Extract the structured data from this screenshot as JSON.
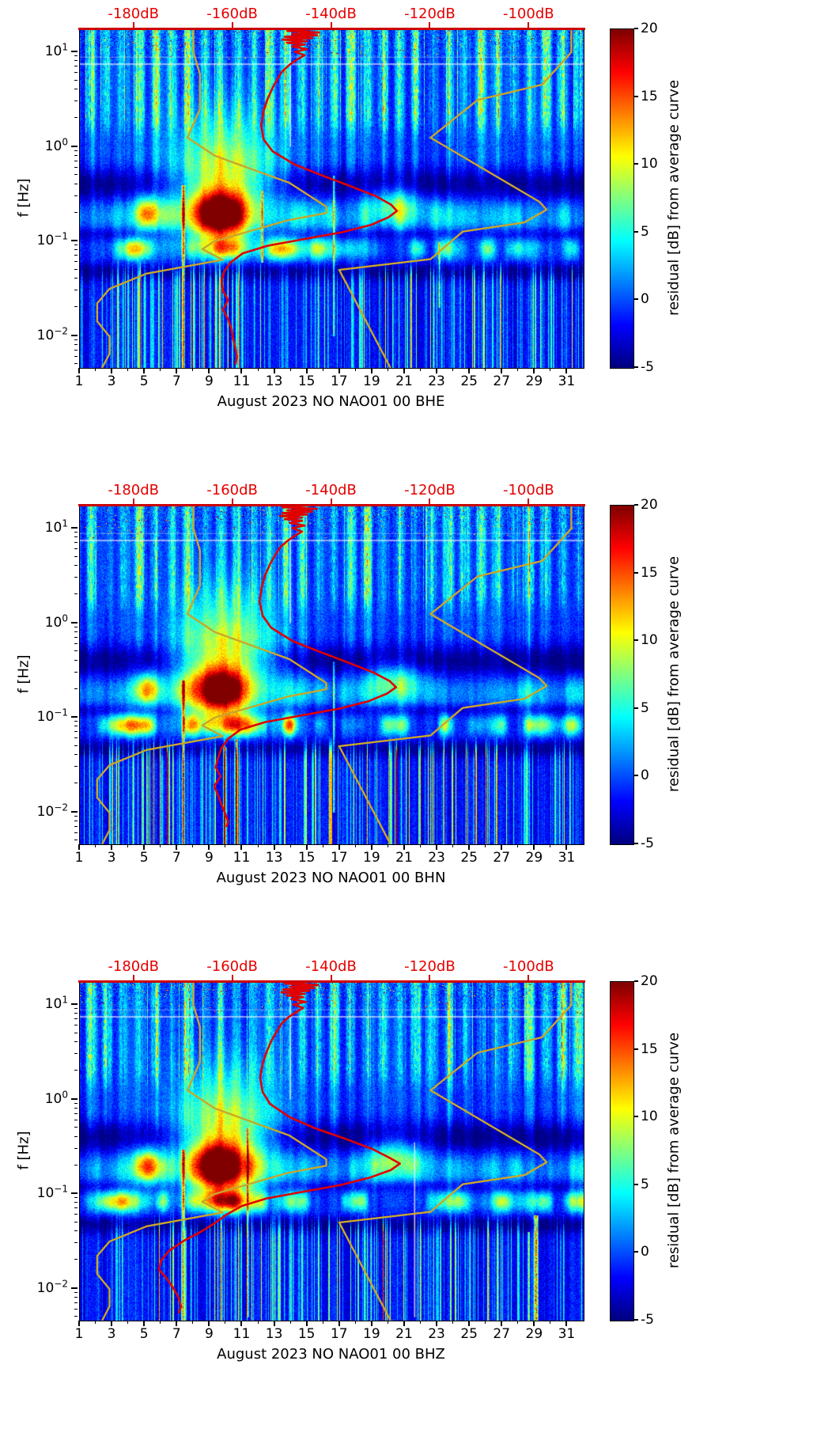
{
  "colors": {
    "top_axis_labels": "#e60000",
    "top_axis_spine": "#cc0000",
    "median_curve": "#e00000",
    "noise_model_curves": "#c9a62b",
    "spine": "#000000",
    "background": "#ffffff"
  },
  "chart_data": {
    "type": "heatmap",
    "colormap": "jet",
    "clim": [
      -5,
      20
    ],
    "ylabel": "f [Hz]",
    "x_axis": {
      "tick_days": [
        1,
        3,
        5,
        7,
        9,
        11,
        13,
        15,
        17,
        19,
        21,
        23,
        25,
        27,
        29,
        31
      ],
      "range": [
        1,
        32
      ]
    },
    "y_axis": {
      "base": "10",
      "decades": [
        {
          "f": 10,
          "exp": "1"
        },
        {
          "f": 1,
          "exp": "0"
        },
        {
          "f": 0.1,
          "exp": "−1"
        },
        {
          "f": 0.01,
          "exp": "−2"
        }
      ],
      "f_range": [
        0.0046,
        17.5
      ]
    },
    "top_axis": {
      "ticks": [
        {
          "db": -180,
          "label": "-180dB"
        },
        {
          "db": -160,
          "label": "-160dB"
        },
        {
          "db": -140,
          "label": "-140dB"
        },
        {
          "db": -120,
          "label": "-120dB"
        },
        {
          "db": -100,
          "label": "-100dB"
        }
      ],
      "db_range": [
        -191,
        -89
      ]
    },
    "colorbar": {
      "label": "residual [dB] from average curve",
      "ticks": [
        20,
        15,
        10,
        5,
        0,
        -5
      ],
      "vmin": -5,
      "vmax": 20
    },
    "curves": {
      "nlnm": [
        [
          17.5,
          -168
        ],
        [
          10,
          -168
        ],
        [
          5.88,
          -166.7
        ],
        [
          2.5,
          -166.7
        ],
        [
          1.25,
          -169.2
        ],
        [
          0.806,
          -163.7
        ],
        [
          0.417,
          -148.6
        ],
        [
          0.233,
          -141.1
        ],
        [
          0.2,
          -141.1
        ],
        [
          0.167,
          -149.0
        ],
        [
          0.1,
          -163.8
        ],
        [
          0.083,
          -166.2
        ],
        [
          0.064,
          -162.1
        ],
        [
          0.0457,
          -177.5
        ],
        [
          0.0316,
          -185.0
        ],
        [
          0.0222,
          -187.5
        ],
        [
          0.0143,
          -187.5
        ],
        [
          0.0099,
          -185.0
        ],
        [
          0.0065,
          -185.0
        ],
        [
          0.0046,
          -186.5
        ]
      ],
      "nhnm": [
        [
          17.5,
          -91.5
        ],
        [
          10,
          -91.5
        ],
        [
          4.55,
          -97.4
        ],
        [
          3.12,
          -110.5
        ],
        [
          1.25,
          -120.0
        ],
        [
          0.263,
          -98.0
        ],
        [
          0.217,
          -96.5
        ],
        [
          0.159,
          -101.0
        ],
        [
          0.127,
          -113.5
        ],
        [
          0.065,
          -120.0
        ],
        [
          0.05,
          -138.5
        ],
        [
          0.0046,
          -128.1
        ]
      ]
    },
    "panels": [
      {
        "channel": "BHE",
        "xlabel": "August 2023 NO NAO01 00 BHE",
        "seed": 3,
        "storm": {
          "day": 9.6,
          "amp": 21
        },
        "special_columns": [
          {
            "day": 7.35,
            "f1": 0.0046,
            "f2": 0.4,
            "amp": 15,
            "w": 2
          },
          {
            "day": 12.2,
            "f1": 0.06,
            "f2": 0.35,
            "amp": 11,
            "w": 1
          },
          {
            "day": 16.6,
            "f1": 0.01,
            "f2": 0.5,
            "amp": 10,
            "w": 1
          },
          {
            "day": 23.1,
            "f1": 0.02,
            "f2": 0.1,
            "amp": 9,
            "w": 1
          }
        ],
        "gap_columns": [
          {
            "day": 13.95,
            "f1": 1.0,
            "f2": 17.5
          }
        ],
        "median_curve": [
          [
            17.5,
            -144
          ],
          [
            16.8,
            -149
          ],
          [
            16.2,
            -142.5
          ],
          [
            15.6,
            -148
          ],
          [
            15.1,
            -143
          ],
          [
            14.6,
            -149.5
          ],
          [
            14.1,
            -144
          ],
          [
            13.6,
            -150
          ],
          [
            13.1,
            -145
          ],
          [
            12.6,
            -149
          ],
          [
            12.1,
            -145.5
          ],
          [
            11.5,
            -148
          ],
          [
            10.8,
            -145
          ],
          [
            10.1,
            -147.5
          ],
          [
            9.3,
            -145.5
          ],
          [
            8.4,
            -147
          ],
          [
            7.4,
            -148.5
          ],
          [
            6.3,
            -150
          ],
          [
            5.2,
            -151
          ],
          [
            4.2,
            -152
          ],
          [
            3.2,
            -153
          ],
          [
            2.4,
            -153.8
          ],
          [
            1.7,
            -154.3
          ],
          [
            1.2,
            -153.8
          ],
          [
            0.9,
            -152
          ],
          [
            0.65,
            -147.5
          ],
          [
            0.5,
            -142
          ],
          [
            0.38,
            -136
          ],
          [
            0.3,
            -131
          ],
          [
            0.245,
            -128
          ],
          [
            0.21,
            -126.8
          ],
          [
            0.18,
            -128.5
          ],
          [
            0.15,
            -132
          ],
          [
            0.125,
            -138
          ],
          [
            0.105,
            -146
          ],
          [
            0.09,
            -153
          ],
          [
            0.075,
            -158
          ],
          [
            0.06,
            -160.5
          ],
          [
            0.048,
            -161.8
          ],
          [
            0.038,
            -162.3
          ],
          [
            0.03,
            -162
          ],
          [
            0.024,
            -161
          ],
          [
            0.019,
            -162
          ],
          [
            0.015,
            -161
          ],
          [
            0.012,
            -160.3
          ],
          [
            0.0095,
            -160
          ],
          [
            0.0075,
            -159.5
          ],
          [
            0.006,
            -159.2
          ],
          [
            0.005,
            -159.5
          ]
        ]
      },
      {
        "channel": "BHN",
        "xlabel": "August 2023 NO NAO01 00 BHN",
        "seed": 57,
        "storm": {
          "day": 9.6,
          "amp": 19.5
        },
        "special_columns": [
          {
            "day": 7.35,
            "f1": 0.0046,
            "f2": 0.25,
            "amp": 13,
            "w": 2
          },
          {
            "day": 9.9,
            "f1": 0.0046,
            "f2": 0.05,
            "amp": 16,
            "w": 2
          },
          {
            "day": 10.6,
            "f1": 0.0046,
            "f2": 0.06,
            "amp": 14,
            "w": 1
          },
          {
            "day": 16.6,
            "f1": 0.01,
            "f2": 0.4,
            "amp": 10,
            "w": 1
          }
        ],
        "gap_columns": [
          {
            "day": 13.95,
            "f1": 1.0,
            "f2": 17.5
          }
        ],
        "median_curve": [
          [
            17.5,
            -145
          ],
          [
            16.8,
            -150
          ],
          [
            16.2,
            -143
          ],
          [
            15.6,
            -149
          ],
          [
            15.1,
            -144
          ],
          [
            14.6,
            -150
          ],
          [
            14.1,
            -145
          ],
          [
            13.6,
            -150.5
          ],
          [
            13.1,
            -146
          ],
          [
            12.6,
            -149.5
          ],
          [
            12.1,
            -146
          ],
          [
            11.5,
            -148.5
          ],
          [
            10.8,
            -145.5
          ],
          [
            10.1,
            -148
          ],
          [
            9.3,
            -146
          ],
          [
            8.4,
            -147.5
          ],
          [
            7.4,
            -149
          ],
          [
            6.3,
            -150.5
          ],
          [
            5.2,
            -151.5
          ],
          [
            4.2,
            -152.5
          ],
          [
            3.2,
            -153.5
          ],
          [
            2.4,
            -154.2
          ],
          [
            1.7,
            -154.6
          ],
          [
            1.2,
            -154
          ],
          [
            0.9,
            -152.3
          ],
          [
            0.65,
            -148
          ],
          [
            0.5,
            -142.5
          ],
          [
            0.38,
            -136.5
          ],
          [
            0.3,
            -131.5
          ],
          [
            0.245,
            -128.3
          ],
          [
            0.21,
            -127
          ],
          [
            0.18,
            -128.8
          ],
          [
            0.15,
            -132.5
          ],
          [
            0.125,
            -138.5
          ],
          [
            0.105,
            -146.5
          ],
          [
            0.09,
            -153.5
          ],
          [
            0.075,
            -158.5
          ],
          [
            0.06,
            -161
          ],
          [
            0.048,
            -162.3
          ],
          [
            0.038,
            -163
          ],
          [
            0.03,
            -163.5
          ],
          [
            0.024,
            -162.5
          ],
          [
            0.019,
            -163.8
          ],
          [
            0.015,
            -163
          ],
          [
            0.012,
            -162.3
          ],
          [
            0.0095,
            -161.5
          ],
          [
            0.008,
            -161
          ],
          [
            0.007,
            -161.3
          ]
        ]
      },
      {
        "channel": "BHZ",
        "xlabel": "August 2023 NO NAO01 00 BHZ",
        "seed": 91,
        "storm": {
          "day": 9.55,
          "amp": 22.5
        },
        "special_columns": [
          {
            "day": 7.35,
            "f1": 0.0046,
            "f2": 0.3,
            "amp": 14,
            "w": 2
          },
          {
            "day": 29.05,
            "f1": 0.0046,
            "f2": 0.06,
            "amp": 19,
            "w": 3
          },
          {
            "day": 28.6,
            "f1": 0.0046,
            "f2": 0.04,
            "amp": 12,
            "w": 1
          },
          {
            "day": 11.3,
            "f1": 0.005,
            "f2": 0.5,
            "amp": 11,
            "w": 1
          }
        ],
        "gap_columns": [
          {
            "day": 13.95,
            "f1": 1.0,
            "f2": 17.5
          },
          {
            "day": 21.6,
            "f1": 0.005,
            "f2": 0.35
          }
        ],
        "median_curve": [
          [
            17.5,
            -144.5
          ],
          [
            16.8,
            -149.5
          ],
          [
            16.2,
            -142.8
          ],
          [
            15.6,
            -148.5
          ],
          [
            15.1,
            -143.5
          ],
          [
            14.6,
            -149.8
          ],
          [
            14.1,
            -144.5
          ],
          [
            13.6,
            -150.2
          ],
          [
            13.1,
            -145.5
          ],
          [
            12.6,
            -149.2
          ],
          [
            12.1,
            -145.8
          ],
          [
            11.5,
            -148.2
          ],
          [
            10.8,
            -145.2
          ],
          [
            10.1,
            -147.8
          ],
          [
            9.3,
            -145.8
          ],
          [
            8.4,
            -147.2
          ],
          [
            7.4,
            -148.8
          ],
          [
            6.3,
            -150.2
          ],
          [
            5.2,
            -151.2
          ],
          [
            4.2,
            -152.2
          ],
          [
            3.2,
            -153.2
          ],
          [
            2.4,
            -154
          ],
          [
            1.7,
            -154.5
          ],
          [
            1.2,
            -154
          ],
          [
            0.9,
            -152.5
          ],
          [
            0.65,
            -148.5
          ],
          [
            0.5,
            -143.5
          ],
          [
            0.38,
            -137
          ],
          [
            0.3,
            -131.8
          ],
          [
            0.245,
            -128.5
          ],
          [
            0.21,
            -126.2
          ],
          [
            0.18,
            -128
          ],
          [
            0.15,
            -132.2
          ],
          [
            0.125,
            -138.2
          ],
          [
            0.105,
            -146.2
          ],
          [
            0.09,
            -153.2
          ],
          [
            0.075,
            -158.2
          ],
          [
            0.06,
            -161.5
          ],
          [
            0.05,
            -163.5
          ],
          [
            0.04,
            -166.5
          ],
          [
            0.032,
            -170
          ],
          [
            0.025,
            -173
          ],
          [
            0.02,
            -174.5
          ],
          [
            0.016,
            -175
          ],
          [
            0.013,
            -173.5
          ],
          [
            0.01,
            -172
          ],
          [
            0.008,
            -171
          ],
          [
            0.0065,
            -170.5
          ],
          [
            0.0055,
            -171
          ]
        ]
      }
    ]
  }
}
